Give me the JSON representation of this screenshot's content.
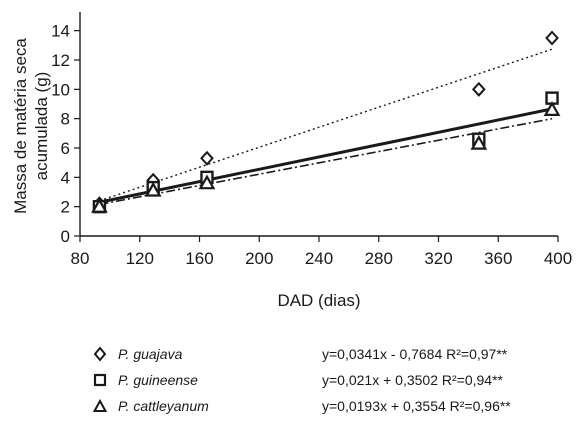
{
  "chart_data": {
    "type": "scatter",
    "xlabel": "DAD (dias)",
    "ylabel": [
      "Massa  de matéria seca",
      "acumulada (g)"
    ],
    "xlim": [
      80,
      400
    ],
    "ylim": [
      0,
      15
    ],
    "xticks": [
      80,
      120,
      160,
      200,
      240,
      280,
      320,
      360,
      400
    ],
    "yticks": [
      0,
      2,
      4,
      6,
      8,
      10,
      12,
      14
    ],
    "grid": false,
    "legend_position": "bottom",
    "x": [
      93,
      129,
      165,
      347,
      396
    ],
    "series": [
      {
        "name": "P. guajava",
        "marker": "diamond",
        "values": [
          2.2,
          3.8,
          5.3,
          10.0,
          13.5
        ],
        "trend": {
          "slope": 0.0341,
          "intercept": -0.7684,
          "style": "dotted"
        },
        "equation": "y=0,0341x - 0,7684 R²=0,97**"
      },
      {
        "name": "P. guineense",
        "marker": "square",
        "values": [
          2.0,
          3.3,
          4.0,
          6.6,
          9.4
        ],
        "trend": {
          "slope": 0.021,
          "intercept": 0.3502,
          "style": "solid"
        },
        "equation": "y=0,021x + 0,3502 R²=0,94**"
      },
      {
        "name": "P. cattleyanum",
        "marker": "triangle",
        "values": [
          2.0,
          3.1,
          3.6,
          6.3,
          8.6
        ],
        "trend": {
          "slope": 0.0193,
          "intercept": 0.3554,
          "style": "dashdot"
        },
        "equation": "y=0,0193x + 0,3554 R²=0,96**"
      }
    ]
  }
}
